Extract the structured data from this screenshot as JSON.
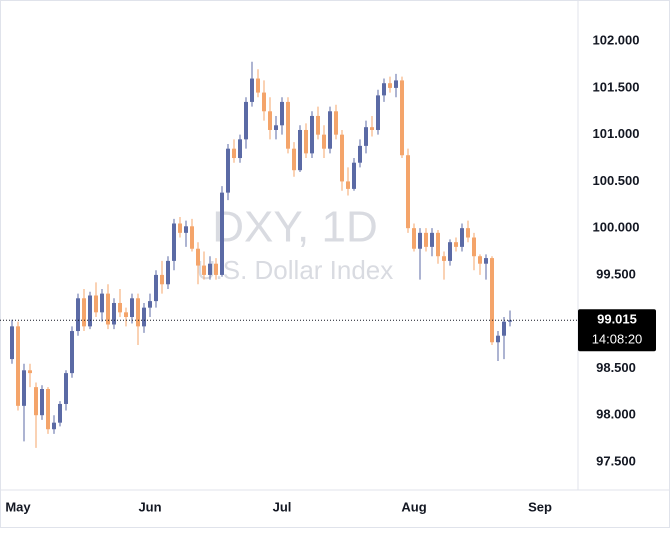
{
  "chart_data": {
    "type": "candlestick",
    "title": "DXY, 1D",
    "subtitle": "U.S. Dollar Index",
    "countdown": "14:08:20",
    "categories": [
      null,
      "May",
      null,
      null,
      null,
      null,
      null,
      null,
      null,
      null,
      null,
      null,
      null,
      null,
      null,
      null,
      null,
      null,
      null,
      null,
      null,
      null,
      null,
      "Jun",
      null,
      null,
      null,
      null,
      null,
      null,
      null,
      null,
      null,
      null,
      null,
      null,
      null,
      null,
      null,
      null,
      null,
      null,
      null,
      null,
      null,
      "Jul",
      null,
      null,
      null,
      null,
      null,
      null,
      null,
      null,
      null,
      null,
      null,
      null,
      null,
      null,
      null,
      null,
      null,
      null,
      null,
      null,
      null,
      "Aug",
      null,
      null,
      null,
      null,
      null,
      null,
      null,
      null,
      null,
      null,
      null,
      null,
      null,
      null,
      null,
      null,
      null,
      null,
      null,
      null,
      "Sep",
      null
    ],
    "open": [
      98.6,
      98.95,
      98.1,
      98.48,
      98.3,
      98.0,
      98.28,
      97.85,
      97.92,
      98.12,
      98.45,
      98.9,
      99.25,
      98.95,
      99.28,
      99.1,
      99.3,
      98.97,
      99.2,
      99.1,
      99.05,
      99.25,
      98.95,
      99.15,
      99.22,
      99.5,
      99.4,
      99.65,
      100.05,
      99.95,
      100.02,
      99.78,
      99.6,
      99.5,
      99.62,
      99.5,
      100.38,
      100.85,
      100.75,
      100.95,
      101.35,
      101.6,
      101.45,
      101.25,
      101.05,
      101.1,
      101.35,
      100.85,
      100.62,
      101.05,
      100.8,
      101.2,
      101.0,
      100.85,
      101.25,
      101.0,
      100.5,
      100.42,
      100.7,
      100.88,
      101.08,
      101.05,
      101.42,
      101.55,
      101.5,
      101.58,
      100.78,
      100.0,
      99.78,
      99.95,
      99.8,
      99.95,
      99.7,
      99.65,
      99.85,
      99.8,
      100.0,
      99.9,
      99.7,
      99.62,
      99.68,
      98.78,
      98.85,
      99.0,
      null,
      null,
      null,
      null,
      null,
      null
    ],
    "high": [
      99.02,
      99.0,
      98.55,
      98.55,
      98.35,
      98.32,
      98.3,
      98.0,
      98.15,
      98.48,
      98.95,
      99.3,
      99.35,
      99.32,
      99.42,
      99.35,
      99.4,
      99.25,
      99.35,
      99.15,
      99.3,
      99.3,
      99.2,
      99.3,
      99.55,
      99.65,
      99.7,
      100.1,
      100.12,
      100.08,
      100.1,
      99.85,
      99.75,
      99.7,
      99.68,
      100.45,
      100.9,
      100.95,
      101.0,
      101.4,
      101.78,
      101.7,
      101.58,
      101.4,
      101.2,
      101.4,
      101.4,
      100.92,
      101.1,
      101.12,
      101.25,
      101.3,
      101.1,
      101.3,
      101.32,
      101.05,
      100.65,
      100.75,
      100.95,
      101.15,
      101.2,
      101.48,
      101.6,
      101.62,
      101.65,
      101.62,
      100.85,
      100.05,
      100.0,
      100.0,
      100.0,
      99.98,
      99.75,
      99.88,
      99.9,
      100.05,
      100.08,
      99.95,
      99.72,
      99.72,
      99.7,
      98.9,
      99.05,
      99.12,
      null,
      null,
      null,
      null,
      null,
      null
    ],
    "low": [
      98.55,
      98.05,
      97.72,
      98.3,
      97.65,
      97.95,
      97.8,
      97.8,
      97.88,
      98.05,
      98.4,
      98.85,
      98.9,
      98.92,
      99.05,
      99.0,
      98.92,
      98.92,
      99.05,
      98.95,
      98.98,
      98.75,
      98.88,
      99.05,
      99.15,
      99.3,
      99.35,
      99.55,
      99.9,
      99.8,
      99.75,
      99.4,
      99.45,
      99.45,
      99.45,
      99.48,
      100.3,
      100.7,
      100.7,
      100.85,
      101.3,
      101.4,
      101.15,
      100.95,
      100.95,
      101.0,
      100.8,
      100.55,
      100.6,
      100.75,
      100.75,
      100.95,
      100.75,
      100.8,
      100.95,
      100.4,
      100.35,
      100.4,
      100.65,
      100.8,
      100.98,
      101.0,
      101.35,
      101.45,
      101.4,
      100.75,
      99.95,
      99.75,
      99.45,
      99.75,
      99.7,
      99.62,
      99.45,
      99.6,
      99.75,
      99.75,
      99.85,
      99.55,
      99.5,
      99.45,
      98.75,
      98.58,
      98.6,
      98.95,
      null,
      null,
      null,
      null,
      null,
      null
    ],
    "close": [
      98.95,
      98.1,
      98.48,
      98.45,
      98.0,
      98.28,
      97.85,
      97.92,
      98.12,
      98.45,
      98.9,
      99.25,
      98.95,
      99.28,
      99.1,
      99.3,
      98.97,
      99.2,
      99.1,
      99.05,
      99.25,
      98.95,
      99.15,
      99.22,
      99.5,
      99.4,
      99.65,
      100.05,
      99.95,
      100.02,
      99.78,
      99.6,
      99.5,
      99.62,
      99.5,
      100.38,
      100.85,
      100.75,
      100.95,
      101.35,
      101.6,
      101.45,
      101.25,
      101.05,
      101.1,
      101.35,
      100.85,
      100.62,
      101.05,
      100.8,
      101.2,
      101.0,
      100.85,
      101.25,
      101.0,
      100.5,
      100.42,
      100.7,
      100.88,
      101.08,
      101.05,
      101.42,
      101.55,
      101.5,
      101.58,
      100.78,
      100.0,
      99.78,
      99.95,
      99.8,
      99.95,
      99.7,
      99.65,
      99.85,
      99.8,
      100.0,
      99.9,
      99.7,
      99.62,
      99.68,
      98.78,
      98.85,
      99.0,
      99.015,
      null,
      null,
      null,
      null,
      null,
      null
    ],
    "up_color": "#5b6aa5",
    "down_color": "#f4a46a",
    "ylim": [
      97.2,
      102.44
    ],
    "yticks": [
      {
        "value": 97.5,
        "label": "97.500"
      },
      {
        "value": 98,
        "label": "98.000"
      },
      {
        "value": 98.5,
        "label": "98.500"
      },
      {
        "value": 99.5,
        "label": "99.500"
      },
      {
        "value": 100,
        "label": "100.000"
      },
      {
        "value": 100.5,
        "label": "100.500"
      },
      {
        "value": 101,
        "label": "101.000"
      },
      {
        "value": 101.5,
        "label": "101.500"
      },
      {
        "value": 102,
        "label": "102.000"
      }
    ],
    "grid": false
  }
}
